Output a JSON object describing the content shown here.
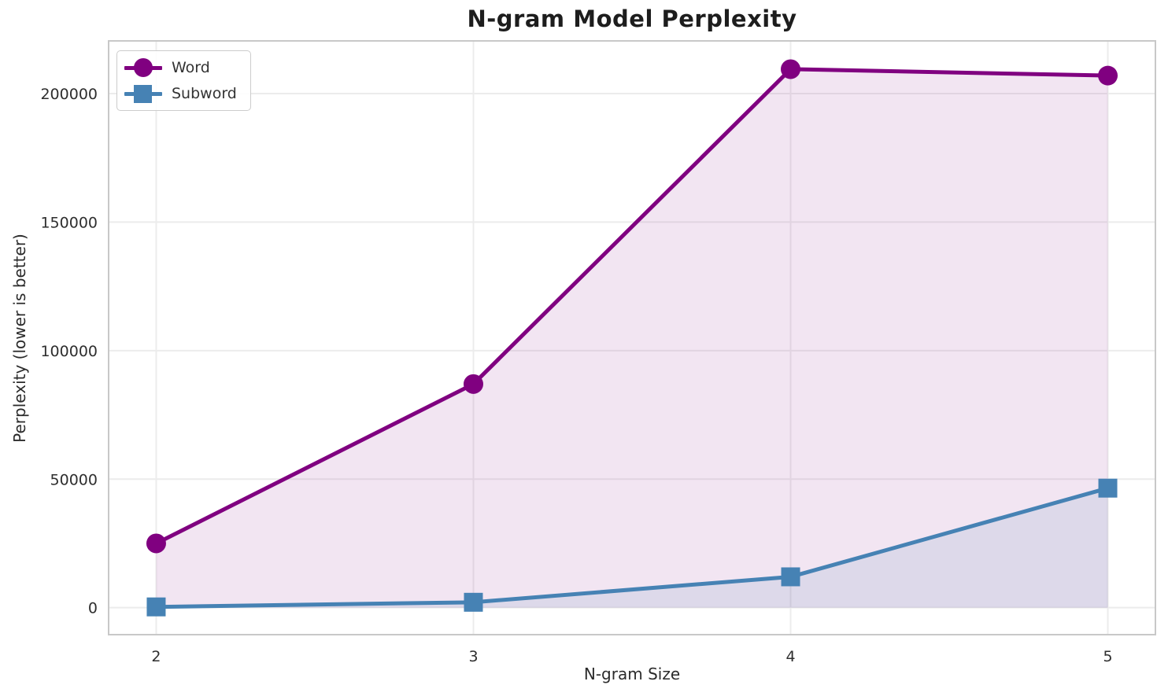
{
  "title": "N-gram Model Perplexity",
  "chart_data": {
    "type": "line",
    "title": "N-gram Model Perplexity",
    "xlabel": "N-gram Size",
    "ylabel": "Perplexity (lower is better)",
    "x": [
      2,
      3,
      4,
      5
    ],
    "x_ticks": [
      2,
      3,
      4,
      5
    ],
    "y_ticks": [
      0,
      50000,
      100000,
      150000,
      200000
    ],
    "xlim": [
      1.85,
      5.15
    ],
    "ylim": [
      -10500,
      220500
    ],
    "grid": true,
    "legend_position": "upper left",
    "series": [
      {
        "name": "Word",
        "marker": "circle",
        "color": "#800080",
        "fill_opacity": 0.1,
        "values": [
          25000,
          87000,
          209500,
          207000
        ]
      },
      {
        "name": "Subword",
        "marker": "square",
        "color": "#4682B4",
        "fill_opacity": 0.12,
        "values": [
          300,
          2100,
          12000,
          46500
        ]
      }
    ],
    "style": {
      "grid_color": "#ececec",
      "spine_color": "#c8c8c8",
      "tick_color": "#2e2e2e",
      "title_color": "#1d1d1d",
      "label_color": "#2b2b2b",
      "legend_text_color": "#333333",
      "background": "#ffffff"
    }
  }
}
